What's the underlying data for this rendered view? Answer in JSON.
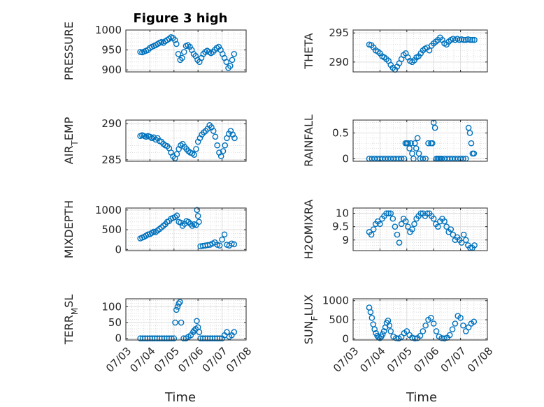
{
  "figure_title": "Figure 3 high",
  "marker_color": "#0072BD",
  "chart_data": [
    {
      "type": "scatter",
      "ylabel": "PRESSURE",
      "ylabel_parts": [
        "PRESSURE"
      ],
      "xlim": [
        0,
        5
      ],
      "ylim": [
        895,
        1000
      ],
      "yticks": [
        900,
        950,
        1000
      ],
      "ytick_labels": [
        "900",
        "950",
        "1000"
      ],
      "grid": true,
      "minor_grid": true,
      "x": [
        0.6,
        0.68,
        0.76,
        0.84,
        0.92,
        1.0,
        1.08,
        1.16,
        1.24,
        1.32,
        1.4,
        1.48,
        1.56,
        1.64,
        1.72,
        1.8,
        1.88,
        1.96,
        2.04,
        2.1,
        2.18,
        2.26,
        2.34,
        2.42,
        2.5,
        2.58,
        2.66,
        2.74,
        2.82,
        2.9,
        2.98,
        3.06,
        3.14,
        3.22,
        3.3,
        3.38,
        3.46,
        3.54,
        3.62,
        3.7,
        3.78,
        3.86,
        3.94,
        4.02,
        4.1,
        4.18,
        4.26,
        4.34,
        4.42,
        4.5
      ],
      "y": [
        945,
        944,
        946,
        948,
        950,
        955,
        958,
        960,
        962,
        965,
        968,
        970,
        968,
        972,
        975,
        978,
        982,
        980,
        975,
        965,
        940,
        925,
        930,
        945,
        960,
        962,
        958,
        950,
        940,
        935,
        925,
        920,
        930,
        940,
        945,
        948,
        945,
        942,
        945,
        950,
        955,
        958,
        950,
        940,
        930,
        920,
        905,
        910,
        925,
        940
      ]
    },
    {
      "type": "scatter",
      "ylabel": "THETA",
      "ylabel_parts": [
        "THETA"
      ],
      "xlim": [
        0,
        5
      ],
      "ylim": [
        288.3,
        295.5
      ],
      "yticks": [
        290,
        295
      ],
      "ytick_labels": [
        "290",
        "295"
      ],
      "grid": true,
      "minor_grid": true,
      "x": [
        0.6,
        0.68,
        0.76,
        0.84,
        0.92,
        1.0,
        1.08,
        1.16,
        1.24,
        1.32,
        1.4,
        1.48,
        1.56,
        1.64,
        1.72,
        1.8,
        1.88,
        1.96,
        2.04,
        2.12,
        2.2,
        2.28,
        2.36,
        2.44,
        2.52,
        2.6,
        2.68,
        2.76,
        2.84,
        2.92,
        3.0,
        3.08,
        3.16,
        3.24,
        3.32,
        3.4,
        3.48,
        3.56,
        3.64,
        3.72,
        3.8,
        3.88,
        3.96,
        4.04,
        4.12,
        4.2,
        4.28,
        4.36,
        4.44,
        4.52
      ],
      "y": [
        293.0,
        292.9,
        292.5,
        292.0,
        291.8,
        291.5,
        291.0,
        290.8,
        290.5,
        290.2,
        289.5,
        289.0,
        288.7,
        289.2,
        289.8,
        290.5,
        291.2,
        291.5,
        290.8,
        290.2,
        290.0,
        290.3,
        290.8,
        291.0,
        291.5,
        292.0,
        292.3,
        292.5,
        292.0,
        292.8,
        293.2,
        293.5,
        293.8,
        294.2,
        293.8,
        293.2,
        293.0,
        293.5,
        293.8,
        294.0,
        293.8,
        294.0,
        293.8,
        293.9,
        293.8,
        293.8,
        293.9,
        293.8,
        293.8,
        293.8
      ]
    },
    {
      "type": "scatter",
      "ylabel": "AIR_TEMP",
      "ylabel_parts": [
        "AIR",
        "T",
        "EMP"
      ],
      "xlim": [
        0,
        5
      ],
      "ylim": [
        284.8,
        290.5
      ],
      "yticks": [
        285,
        290
      ],
      "ytick_labels": [
        "285",
        "290"
      ],
      "grid": true,
      "minor_grid": true,
      "x": [
        0.6,
        0.68,
        0.76,
        0.84,
        0.92,
        1.0,
        1.08,
        1.16,
        1.24,
        1.32,
        1.4,
        1.48,
        1.56,
        1.64,
        1.72,
        1.8,
        1.88,
        1.96,
        2.04,
        2.12,
        2.2,
        2.28,
        2.36,
        2.44,
        2.52,
        2.6,
        2.68,
        2.76,
        2.84,
        2.92,
        3.0,
        3.08,
        3.16,
        3.24,
        3.32,
        3.4,
        3.48,
        3.56,
        3.64,
        3.72,
        3.8,
        3.88,
        3.96,
        4.04,
        4.12,
        4.2,
        4.28,
        4.36,
        4.44,
        4.52
      ],
      "y": [
        288.3,
        288.4,
        288.3,
        288.2,
        288.3,
        288.2,
        288.0,
        288.1,
        287.8,
        288.0,
        287.6,
        287.5,
        287.2,
        287.0,
        286.9,
        286.6,
        286.0,
        285.5,
        285.2,
        285.8,
        286.5,
        287.0,
        287.2,
        286.8,
        286.5,
        286.2,
        286.0,
        285.9,
        285.7,
        286.5,
        287.5,
        288.0,
        288.5,
        288.8,
        289.0,
        289.3,
        289.8,
        289.5,
        289.0,
        288.2,
        287.0,
        286.0,
        285.5,
        286.2,
        287.0,
        288.0,
        288.6,
        289.0,
        288.5,
        288.0
      ]
    },
    {
      "type": "scatter",
      "ylabel": "RAINFALL",
      "ylabel_parts": [
        "RAINFALL"
      ],
      "xlim": [
        0,
        5
      ],
      "ylim": [
        -0.05,
        0.75
      ],
      "yticks": [
        0,
        0.5
      ],
      "ytick_labels": [
        "0",
        "0.5"
      ],
      "grid": true,
      "minor_grid": true,
      "x": [
        0.6,
        0.7,
        0.8,
        0.9,
        1.0,
        1.1,
        1.2,
        1.3,
        1.4,
        1.5,
        1.6,
        1.7,
        1.8,
        1.9,
        1.95,
        2.0,
        2.05,
        2.1,
        2.15,
        2.2,
        2.25,
        2.3,
        2.35,
        2.4,
        2.45,
        2.5,
        2.6,
        2.7,
        2.8,
        2.9,
        2.95,
        3.0,
        3.05,
        3.1,
        3.15,
        3.2,
        3.25,
        3.3,
        3.4,
        3.5,
        3.6,
        3.7,
        3.8,
        3.9,
        4.0,
        4.1,
        4.2,
        4.3,
        4.35,
        4.4,
        4.45,
        4.5
      ],
      "y": [
        0,
        0,
        0,
        0,
        0,
        0,
        0,
        0,
        0,
        0,
        0,
        0,
        0,
        0,
        0.3,
        0.3,
        0.3,
        0.2,
        0.3,
        0.1,
        0,
        0.3,
        0.2,
        0.4,
        0.1,
        0,
        0,
        0,
        0.3,
        0.3,
        0.3,
        0.7,
        0.6,
        0,
        0,
        0,
        0,
        0,
        0,
        0,
        0,
        0,
        0,
        0,
        0,
        0,
        0,
        0.6,
        0.5,
        0.3,
        0.1,
        0.1
      ]
    },
    {
      "type": "scatter",
      "ylabel": "MIXDEPTH",
      "ylabel_parts": [
        "MIXDEPTH"
      ],
      "xlim": [
        0,
        5
      ],
      "ylim": [
        -30,
        1050
      ],
      "yticks": [
        0,
        500,
        1000
      ],
      "ytick_labels": [
        "0",
        "500",
        "1000"
      ],
      "grid": true,
      "minor_grid": true,
      "x": [
        0.6,
        0.68,
        0.76,
        0.84,
        0.92,
        1.0,
        1.08,
        1.16,
        1.24,
        1.32,
        1.4,
        1.48,
        1.56,
        1.64,
        1.72,
        1.8,
        1.88,
        1.96,
        2.04,
        2.12,
        2.2,
        2.28,
        2.36,
        2.44,
        2.52,
        2.6,
        2.68,
        2.76,
        2.84,
        2.92,
        2.96,
        3.0,
        3.04,
        3.1,
        3.2,
        3.3,
        3.4,
        3.5,
        3.6,
        3.7,
        3.8,
        3.9,
        4.0,
        4.1,
        4.2,
        4.3,
        4.4,
        4.5
      ],
      "y": [
        280,
        300,
        320,
        350,
        380,
        390,
        420,
        450,
        440,
        480,
        520,
        560,
        600,
        640,
        700,
        720,
        780,
        800,
        820,
        860,
        700,
        680,
        600,
        650,
        720,
        700,
        650,
        600,
        640,
        620,
        1000,
        850,
        700,
        80,
        90,
        100,
        110,
        120,
        150,
        180,
        120,
        100,
        250,
        380,
        120,
        100,
        150,
        130
      ]
    },
    {
      "type": "scatter",
      "ylabel": "H2OMIXRA",
      "ylabel_parts": [
        "H2OMIXRA"
      ],
      "xlim": [
        0,
        5
      ],
      "ylim": [
        8.6,
        10.2
      ],
      "yticks": [
        9,
        9.5,
        10
      ],
      "ytick_labels": [
        "9",
        "9.5",
        "10"
      ],
      "grid": true,
      "minor_grid": true,
      "x": [
        0.6,
        0.68,
        0.76,
        0.84,
        0.92,
        1.0,
        1.08,
        1.16,
        1.24,
        1.32,
        1.4,
        1.48,
        1.56,
        1.64,
        1.72,
        1.8,
        1.88,
        1.96,
        2.04,
        2.12,
        2.2,
        2.28,
        2.36,
        2.44,
        2.52,
        2.6,
        2.68,
        2.76,
        2.84,
        2.92,
        3.0,
        3.08,
        3.16,
        3.24,
        3.32,
        3.4,
        3.48,
        3.56,
        3.64,
        3.72,
        3.8,
        3.88,
        3.96,
        4.04,
        4.12,
        4.2,
        4.28,
        4.36,
        4.44,
        4.52
      ],
      "y": [
        9.3,
        9.2,
        9.4,
        9.6,
        9.7,
        9.6,
        9.8,
        9.9,
        10.0,
        10.0,
        10.0,
        9.8,
        9.5,
        9.2,
        8.9,
        9.6,
        9.8,
        9.7,
        9.5,
        9.3,
        9.4,
        9.6,
        9.8,
        9.9,
        10.0,
        10.0,
        9.9,
        10.0,
        10.0,
        9.9,
        9.8,
        9.6,
        9.5,
        9.7,
        9.8,
        9.7,
        9.5,
        9.3,
        9.4,
        9.2,
        9.0,
        9.1,
        9.0,
        8.9,
        9.2,
        9.0,
        8.8,
        8.7,
        8.7,
        8.8
      ]
    },
    {
      "type": "scatter",
      "ylabel": "TERR_MSL",
      "ylabel_parts": [
        "TERR",
        "M",
        "SL"
      ],
      "xlim": [
        0,
        5
      ],
      "ylim": [
        -5,
        125
      ],
      "yticks": [
        0,
        50,
        100
      ],
      "ytick_labels": [
        "0",
        "50",
        "100"
      ],
      "grid": true,
      "minor_grid": true,
      "x": [
        0.6,
        0.7,
        0.8,
        0.9,
        1.0,
        1.1,
        1.2,
        1.3,
        1.4,
        1.5,
        1.6,
        1.7,
        1.8,
        1.9,
        2.0,
        2.05,
        2.1,
        2.15,
        2.2,
        2.25,
        2.3,
        2.4,
        2.5,
        2.6,
        2.7,
        2.8,
        2.85,
        2.9,
        2.95,
        3.0,
        3.05,
        3.1,
        3.2,
        3.3,
        3.4,
        3.5,
        3.6,
        3.7,
        3.8,
        3.9,
        4.0,
        4.1,
        4.2,
        4.3,
        4.4,
        4.5
      ],
      "y": [
        0,
        0,
        0,
        0,
        0,
        0,
        0,
        0,
        0,
        0,
        0,
        0,
        0,
        0,
        0,
        50,
        90,
        100,
        110,
        115,
        50,
        0,
        0,
        5,
        10,
        20,
        25,
        30,
        55,
        35,
        20,
        0,
        0,
        0,
        0,
        0,
        0,
        0,
        0,
        0,
        0,
        10,
        20,
        5,
        10,
        20
      ]
    },
    {
      "type": "scatter",
      "ylabel": "SUN_FLUX",
      "ylabel_parts": [
        "SUN",
        "F",
        "LUX"
      ],
      "xlim": [
        0,
        5
      ],
      "ylim": [
        -30,
        1050
      ],
      "yticks": [
        0,
        500,
        1000
      ],
      "ytick_labels": [
        "0",
        "500",
        "1000"
      ],
      "grid": true,
      "minor_grid": true,
      "x": [
        0.6,
        0.65,
        0.7,
        0.75,
        0.8,
        0.85,
        0.9,
        0.95,
        1.0,
        1.05,
        1.1,
        1.15,
        1.2,
        1.25,
        1.3,
        1.35,
        1.4,
        1.5,
        1.6,
        1.7,
        1.8,
        1.9,
        2.0,
        2.1,
        2.2,
        2.3,
        2.4,
        2.5,
        2.6,
        2.7,
        2.8,
        2.9,
        3.0,
        3.1,
        3.2,
        3.3,
        3.4,
        3.5,
        3.6,
        3.7,
        3.8,
        3.9,
        4.0,
        4.1,
        4.2,
        4.3,
        4.4,
        4.5
      ],
      "y": [
        820,
        700,
        550,
        380,
        250,
        150,
        80,
        40,
        20,
        60,
        120,
        200,
        300,
        420,
        480,
        350,
        200,
        60,
        20,
        10,
        50,
        150,
        200,
        100,
        30,
        10,
        20,
        80,
        200,
        350,
        500,
        550,
        400,
        200,
        60,
        20,
        10,
        30,
        100,
        250,
        400,
        600,
        550,
        350,
        200,
        300,
        400,
        450
      ]
    }
  ],
  "x_axis": {
    "label": "Time",
    "tick_labels": [
      "07/03",
      "07/04",
      "07/05",
      "07/06",
      "07/07",
      "07/08"
    ]
  }
}
